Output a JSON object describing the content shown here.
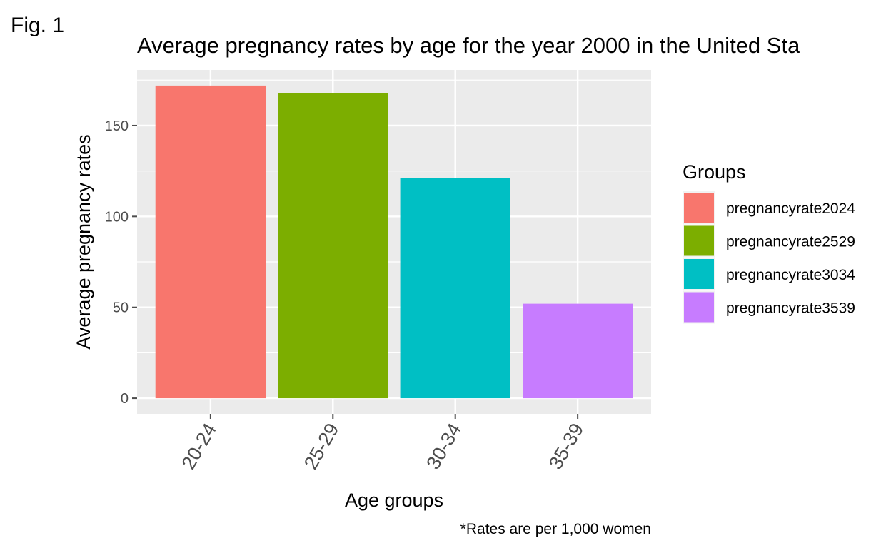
{
  "figure_label": "Fig. 1",
  "caption": "*Rates are per 1,000 women",
  "colors": {
    "panel": "#EBEBEB",
    "grid": "#FFFFFF",
    "tick": "#4D4D4D",
    "text": "#000000"
  },
  "chart_data": {
    "type": "bar",
    "title": "Average pregnancy rates by age for the year 2000 in the United Sta",
    "xlabel": "Age groups",
    "ylabel": "Average pregnancy rates",
    "categories": [
      "20-24",
      "25-29",
      "30-34",
      "35-39"
    ],
    "values": [
      172,
      168,
      121,
      52
    ],
    "ylim": [
      -8.6,
      180.6
    ],
    "yticks": [
      0,
      50,
      100,
      150
    ],
    "grid": true,
    "legend": {
      "title": "Groups",
      "position": "right",
      "entries": [
        {
          "name": "pregnancyrate2024",
          "color": "#F8766D"
        },
        {
          "name": "pregnancyrate2529",
          "color": "#7CAE00"
        },
        {
          "name": "pregnancyrate3034",
          "color": "#00BFC4"
        },
        {
          "name": "pregnancyrate3539",
          "color": "#C77CFF"
        }
      ]
    }
  }
}
